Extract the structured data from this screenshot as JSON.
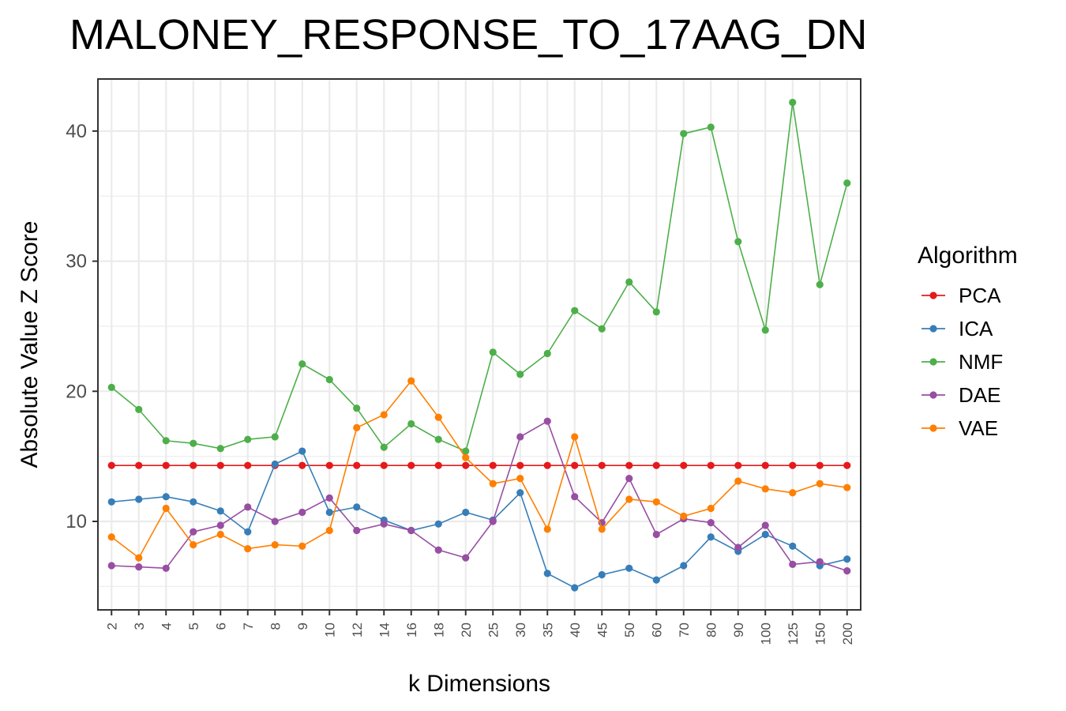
{
  "chart_data": {
    "type": "line",
    "title": "MALONEY_RESPONSE_TO_17AAG_DN",
    "xlabel": "k Dimensions",
    "ylabel": "Absolute Value Z Score",
    "categories": [
      "2",
      "3",
      "4",
      "5",
      "6",
      "7",
      "8",
      "9",
      "10",
      "12",
      "14",
      "16",
      "18",
      "20",
      "25",
      "30",
      "35",
      "40",
      "45",
      "50",
      "60",
      "70",
      "80",
      "90",
      "100",
      "125",
      "150",
      "200"
    ],
    "ylim": [
      3.2,
      44
    ],
    "yticks": [
      10,
      20,
      30,
      40
    ],
    "grid": true,
    "legend": {
      "title": "Algorithm",
      "position": "right"
    },
    "series": [
      {
        "name": "PCA",
        "color": "#e41a1c",
        "values": [
          14.3,
          14.3,
          14.3,
          14.3,
          14.3,
          14.3,
          14.3,
          14.3,
          14.3,
          14.3,
          14.3,
          14.3,
          14.3,
          14.3,
          14.3,
          14.3,
          14.3,
          14.3,
          14.3,
          14.3,
          14.3,
          14.3,
          14.3,
          14.3,
          14.3,
          14.3,
          14.3,
          14.3
        ]
      },
      {
        "name": "ICA",
        "color": "#377eb8",
        "values": [
          11.5,
          11.7,
          11.9,
          11.5,
          10.8,
          9.2,
          14.4,
          15.4,
          10.7,
          11.1,
          10.1,
          9.3,
          9.8,
          10.7,
          10.1,
          12.2,
          6.0,
          4.9,
          5.9,
          6.4,
          5.5,
          6.6,
          8.8,
          7.7,
          9.0,
          8.1,
          6.6,
          7.1
        ]
      },
      {
        "name": "NMF",
        "color": "#4daf4a",
        "values": [
          20.3,
          18.6,
          16.2,
          16.0,
          15.6,
          16.3,
          16.5,
          22.1,
          20.9,
          18.7,
          15.7,
          17.5,
          16.3,
          15.4,
          23.0,
          21.3,
          22.9,
          26.2,
          24.8,
          28.4,
          26.1,
          39.8,
          40.3,
          31.5,
          24.7,
          42.2,
          28.2,
          36.0
        ]
      },
      {
        "name": "DAE",
        "color": "#984ea3",
        "values": [
          6.6,
          6.5,
          6.4,
          9.2,
          9.7,
          11.1,
          10.0,
          10.7,
          11.8,
          9.3,
          9.8,
          9.3,
          7.8,
          7.2,
          10.0,
          16.5,
          17.7,
          11.9,
          9.9,
          13.3,
          9.0,
          10.2,
          9.9,
          8.0,
          9.7,
          6.7,
          6.9,
          6.2
        ]
      },
      {
        "name": "VAE",
        "color": "#ff7f00",
        "values": [
          8.8,
          7.2,
          11.0,
          8.2,
          9.0,
          7.9,
          8.2,
          8.1,
          9.3,
          17.2,
          18.2,
          20.8,
          18.0,
          14.9,
          12.9,
          13.3,
          9.4,
          16.5,
          9.4,
          11.7,
          11.5,
          10.4,
          11.0,
          13.1,
          12.5,
          12.2,
          12.9,
          12.6
        ]
      }
    ]
  }
}
